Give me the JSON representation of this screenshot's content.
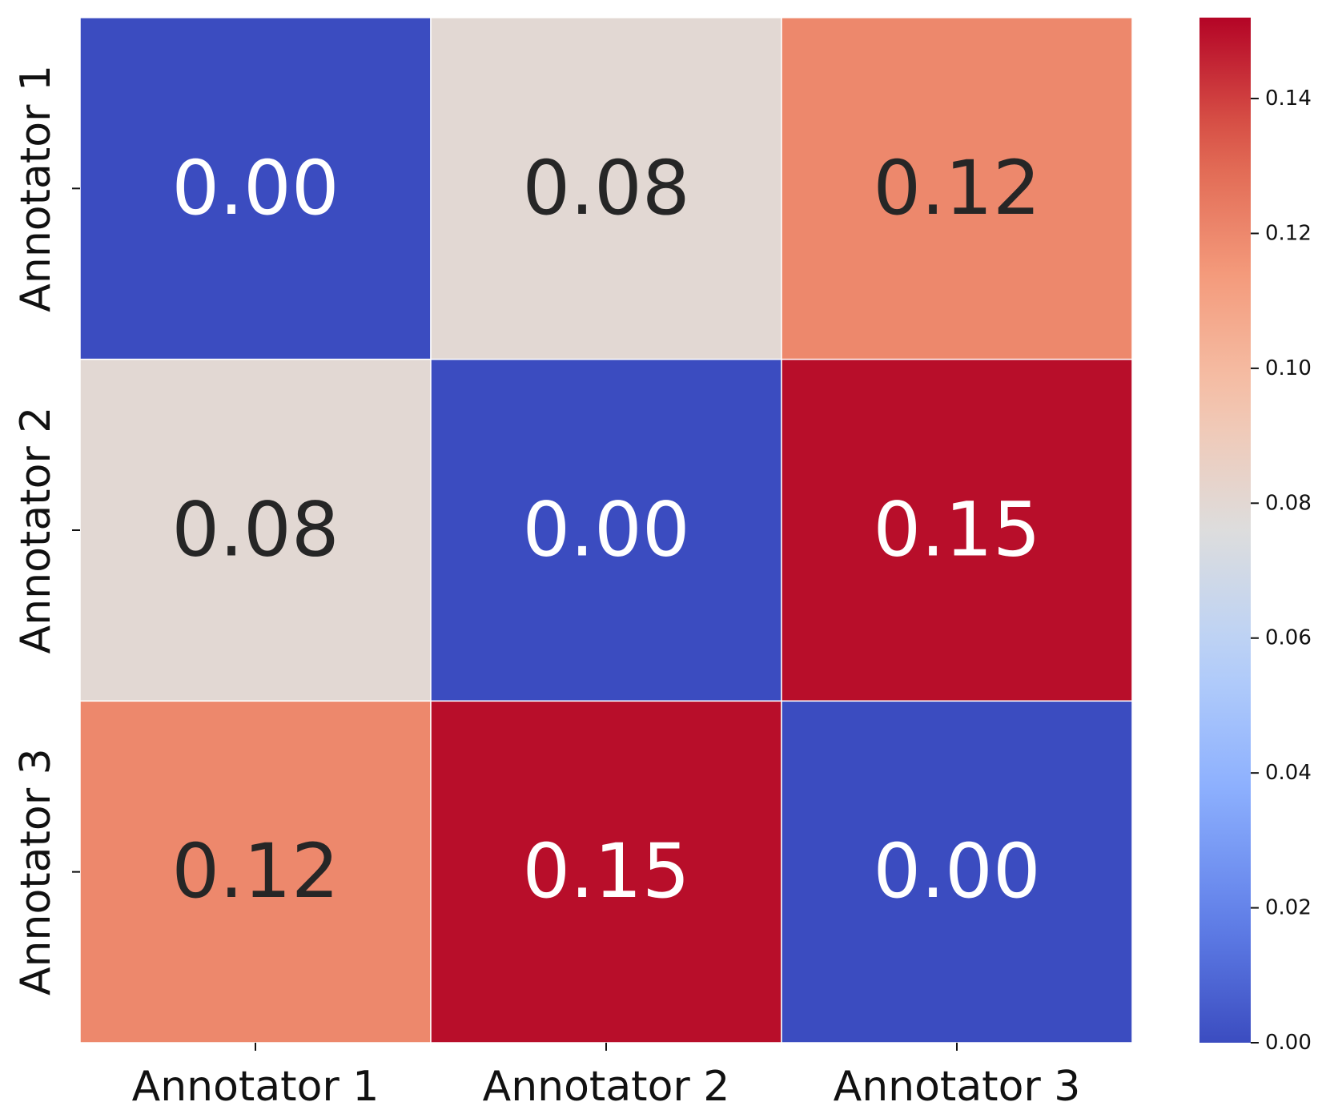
{
  "chart_data": {
    "type": "heatmap",
    "title": "",
    "xlabel": "",
    "ylabel": "",
    "x_categories": [
      "Annotator 1",
      "Annotator 2",
      "Annotator 3"
    ],
    "y_categories": [
      "Annotator 1",
      "Annotator 2",
      "Annotator 3"
    ],
    "values": [
      [
        0.0,
        0.08,
        0.12
      ],
      [
        0.08,
        0.0,
        0.15
      ],
      [
        0.12,
        0.15,
        0.0
      ]
    ],
    "cell_labels": [
      [
        "0.00",
        "0.08",
        "0.12"
      ],
      [
        "0.08",
        "0.00",
        "0.15"
      ],
      [
        "0.12",
        "0.15",
        "0.00"
      ]
    ],
    "colormap": "coolwarm",
    "color_range": [
      0.0,
      0.152
    ],
    "colorbar": {
      "ticks": [
        0.0,
        0.02,
        0.04,
        0.06,
        0.08,
        0.1,
        0.12,
        0.14
      ],
      "tick_labels": [
        "0.00",
        "0.02",
        "0.04",
        "0.06",
        "0.08",
        "0.10",
        "0.12",
        "0.14"
      ]
    },
    "cell_text_color_light": "#ffffff",
    "cell_text_color_dark": "#262626",
    "grid_line_color": "#ffffff"
  }
}
